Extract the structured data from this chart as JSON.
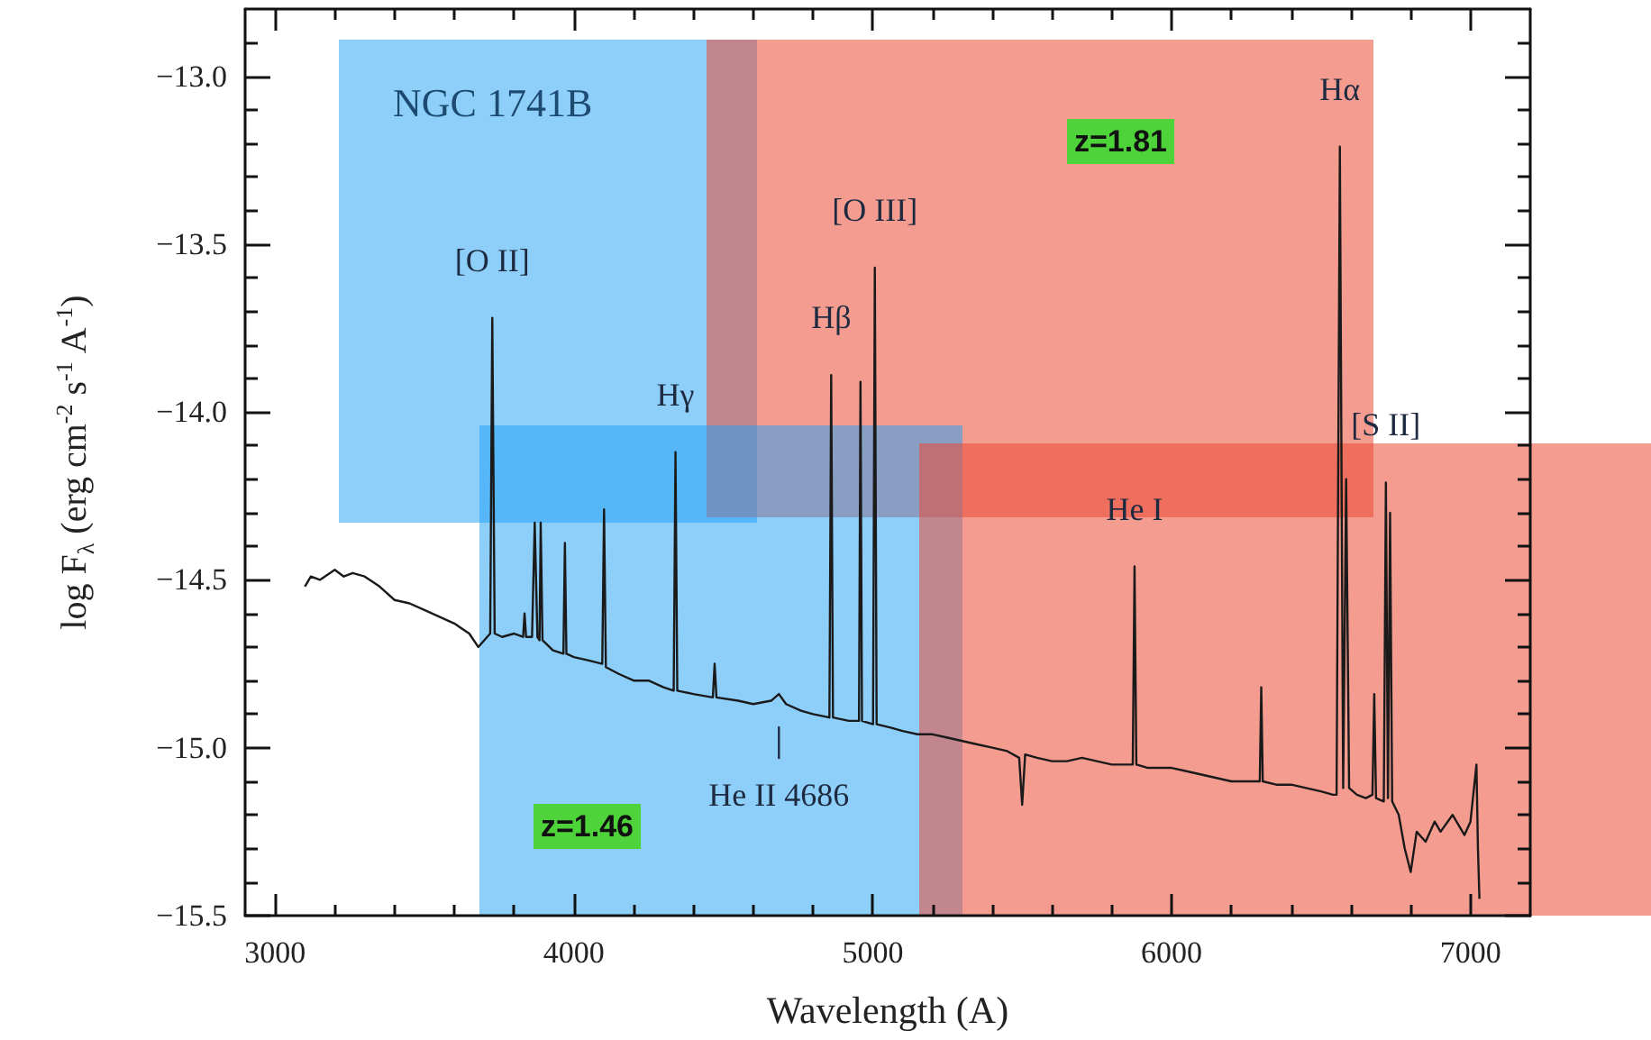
{
  "chart_data": {
    "type": "line",
    "xlabel": "Wavelength (A)",
    "ylabel": "log F$_{λ}$ (erg cm$^{-2}$ s$^{-1}$ A$^{-1}$)",
    "xlim": [
      2900,
      7200
    ],
    "xticks": [
      3000,
      4000,
      5000,
      6000,
      7000
    ],
    "ylim": [
      -15.5,
      -12.8
    ],
    "yticks": [
      {
        "value": -13.0,
        "label": "−13.0"
      },
      {
        "value": -13.5,
        "label": "−13.5"
      },
      {
        "value": -14.0,
        "label": "−14.0"
      },
      {
        "value": -14.5,
        "label": "−14.5"
      },
      {
        "value": -15.0,
        "label": "−15.0"
      },
      {
        "value": -15.5,
        "label": "−15.5"
      }
    ],
    "grid": false,
    "marker": "none",
    "line_style": "solid",
    "series": [
      {
        "color": "#1a1a1a",
        "x": [
          3100,
          3120,
          3150,
          3200,
          3230,
          3260,
          3300,
          3350,
          3400,
          3450,
          3500,
          3550,
          3600,
          3650,
          3680,
          3700,
          3720,
          3727,
          3735,
          3760,
          3800,
          3830,
          3835,
          3840,
          3860,
          3869,
          3878,
          3885,
          3889,
          3895,
          3930,
          3965,
          3970,
          3975,
          4000,
          4050,
          4095,
          4101,
          4107,
          4150,
          4200,
          4250,
          4300,
          4334,
          4340,
          4346,
          4400,
          4465,
          4471,
          4477,
          4550,
          4600,
          4660,
          4686,
          4710,
          4760,
          4800,
          4855,
          4861,
          4867,
          4920,
          4954,
          4959,
          4964,
          5001,
          5007,
          5013,
          5060,
          5100,
          5150,
          5200,
          5250,
          5300,
          5350,
          5400,
          5450,
          5490,
          5500,
          5510,
          5550,
          5600,
          5650,
          5700,
          5750,
          5800,
          5870,
          5876,
          5882,
          5920,
          6000,
          6050,
          6100,
          6150,
          6200,
          6250,
          6295,
          6300,
          6305,
          6350,
          6400,
          6450,
          6500,
          6540,
          6552,
          6563,
          6574,
          6584,
          6594,
          6620,
          6650,
          6672,
          6678,
          6684,
          6710,
          6717,
          6724,
          6731,
          6738,
          6760,
          6780,
          6800,
          6820,
          6850,
          6880,
          6900,
          6940,
          6980,
          7000,
          7020,
          7025,
          7030
        ],
        "values": [
          -14.52,
          -14.49,
          -14.5,
          -14.47,
          -14.49,
          -14.48,
          -14.49,
          -14.52,
          -14.56,
          -14.57,
          -14.59,
          -14.61,
          -14.63,
          -14.66,
          -14.7,
          -14.68,
          -14.66,
          -13.72,
          -14.66,
          -14.67,
          -14.66,
          -14.67,
          -14.6,
          -14.67,
          -14.67,
          -14.33,
          -14.67,
          -14.68,
          -14.33,
          -14.68,
          -14.71,
          -14.72,
          -14.39,
          -14.72,
          -14.73,
          -14.74,
          -14.75,
          -14.29,
          -14.76,
          -14.78,
          -14.8,
          -14.8,
          -14.82,
          -14.83,
          -14.12,
          -14.83,
          -14.84,
          -14.85,
          -14.75,
          -14.85,
          -14.86,
          -14.87,
          -14.86,
          -14.84,
          -14.87,
          -14.89,
          -14.9,
          -14.91,
          -13.89,
          -14.91,
          -14.92,
          -14.92,
          -13.91,
          -14.92,
          -14.93,
          -13.57,
          -14.93,
          -14.94,
          -14.95,
          -14.96,
          -14.96,
          -14.97,
          -14.98,
          -14.99,
          -15.0,
          -15.01,
          -15.03,
          -15.17,
          -15.02,
          -15.03,
          -15.04,
          -15.04,
          -15.03,
          -15.04,
          -15.05,
          -15.05,
          -14.46,
          -15.05,
          -15.06,
          -15.06,
          -15.07,
          -15.08,
          -15.09,
          -15.1,
          -15.1,
          -15.1,
          -14.82,
          -15.1,
          -15.11,
          -15.11,
          -15.12,
          -15.13,
          -15.14,
          -15.14,
          -13.21,
          -15.12,
          -14.2,
          -15.12,
          -15.14,
          -15.15,
          -15.14,
          -14.84,
          -15.15,
          -15.16,
          -14.21,
          -15.15,
          -14.3,
          -15.16,
          -15.2,
          -15.3,
          -15.37,
          -15.25,
          -15.28,
          -15.22,
          -15.25,
          -15.2,
          -15.26,
          -15.22,
          -15.05,
          -15.3,
          -15.45
        ]
      }
    ],
    "annotations": [
      "NGC 1741B",
      "z=1.81",
      "z=1.46",
      {
        "text": "[O II]",
        "x": 3727,
        "y": -13.72
      },
      {
        "text": "Hγ",
        "x": 4340,
        "y": -14.12
      },
      {
        "text": "[O III]",
        "x": 5007,
        "y": -13.57
      },
      {
        "text": "Hβ",
        "x": 4861,
        "y": -13.89
      },
      {
        "text": "Hα",
        "x": 6563,
        "y": -13.21
      },
      {
        "text": "[S II]",
        "x": 6717,
        "y": -14.21
      },
      {
        "text": "He I",
        "x": 5876,
        "y": -14.46
      },
      {
        "text": "He II 4686",
        "x": 4686,
        "y": -14.84
      }
    ]
  }
}
